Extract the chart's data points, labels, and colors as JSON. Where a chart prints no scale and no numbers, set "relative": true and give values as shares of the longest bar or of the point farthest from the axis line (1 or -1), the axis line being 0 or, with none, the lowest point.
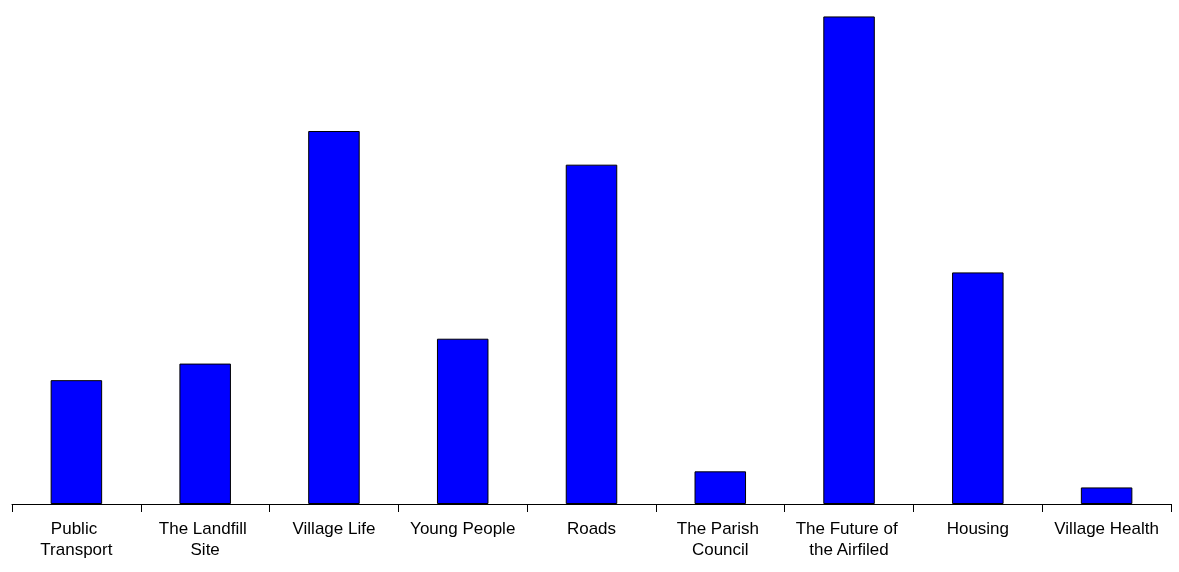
{
  "chart_data": {
    "type": "bar",
    "relative": true,
    "categories": [
      "Public Transport",
      "The Landfill Site",
      "Village Life",
      "Young People",
      "Roads",
      "The Parish Council",
      "The Future of the Airfiled",
      "Housing",
      "Village Health"
    ],
    "values": [
      0.254,
      0.288,
      0.765,
      0.339,
      0.696,
      0.067,
      1,
      0.475,
      0.034
    ],
    "color": "#0000ff"
  }
}
